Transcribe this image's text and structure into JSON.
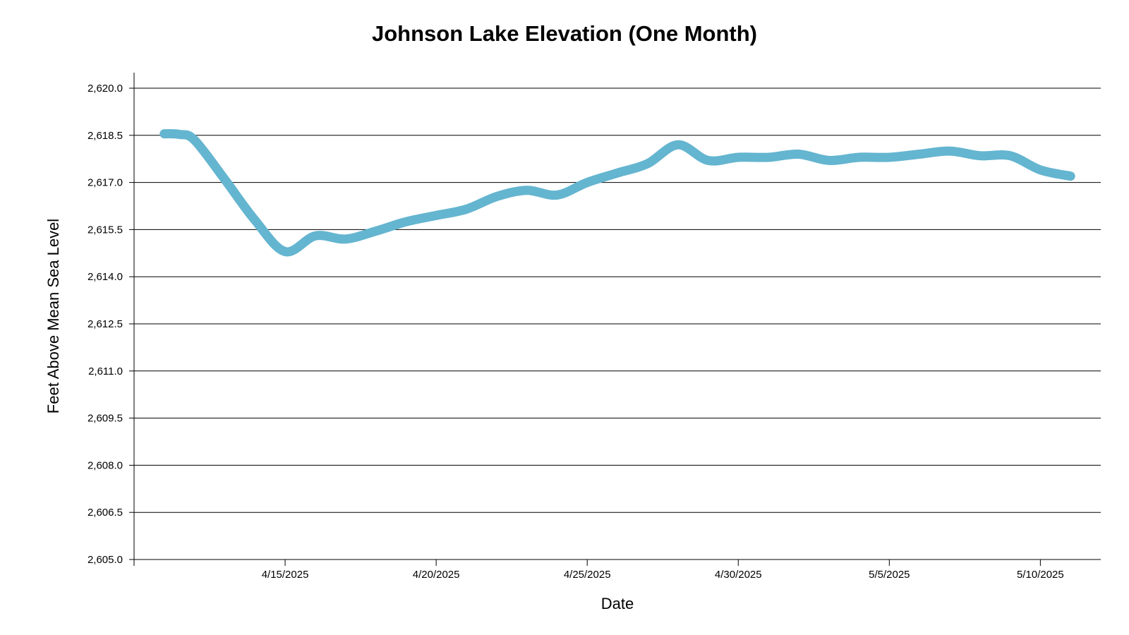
{
  "chart_data": {
    "type": "line",
    "title": "Johnson Lake Elevation (One Month)",
    "xlabel": "Date",
    "ylabel": "Feet Above Mean Sea Level",
    "ylim": [
      2605.0,
      2620.0
    ],
    "yticks": [
      "2,605.0",
      "2,606.5",
      "2,608.0",
      "2,609.5",
      "2,611.0",
      "2,612.5",
      "2,614.0",
      "2,615.5",
      "2,617.0",
      "2,618.5",
      "2,620.0"
    ],
    "xlim": [
      "2025-04-10",
      "2025-05-12"
    ],
    "xticks": [
      {
        "date": "2025-04-15",
        "label": "4/15/2025"
      },
      {
        "date": "2025-04-20",
        "label": "4/20/2025"
      },
      {
        "date": "2025-04-25",
        "label": "4/25/2025"
      },
      {
        "date": "2025-04-30",
        "label": "4/30/2025"
      },
      {
        "date": "2025-05-05",
        "label": "5/5/2025"
      },
      {
        "date": "2025-05-10",
        "label": "5/10/2025"
      }
    ],
    "grid": "horizontal",
    "series": [
      {
        "color": "#64b5d0",
        "points": [
          {
            "x": "2025-04-11",
            "y": 2618.55
          },
          {
            "x": "2025-04-11T12:00",
            "y": 2618.53
          },
          {
            "x": "2025-04-12",
            "y": 2618.35
          },
          {
            "x": "2025-04-13",
            "y": 2617.1
          },
          {
            "x": "2025-04-14",
            "y": 2615.8
          },
          {
            "x": "2025-04-15",
            "y": 2614.8
          },
          {
            "x": "2025-04-16",
            "y": 2615.3
          },
          {
            "x": "2025-04-17",
            "y": 2615.2
          },
          {
            "x": "2025-04-18",
            "y": 2615.45
          },
          {
            "x": "2025-04-19",
            "y": 2615.75
          },
          {
            "x": "2025-04-20",
            "y": 2615.95
          },
          {
            "x": "2025-04-21",
            "y": 2616.15
          },
          {
            "x": "2025-04-22",
            "y": 2616.55
          },
          {
            "x": "2025-04-23",
            "y": 2616.75
          },
          {
            "x": "2025-04-24",
            "y": 2616.6
          },
          {
            "x": "2025-04-25",
            "y": 2617.0
          },
          {
            "x": "2025-04-26",
            "y": 2617.3
          },
          {
            "x": "2025-04-27",
            "y": 2617.6
          },
          {
            "x": "2025-04-28",
            "y": 2618.2
          },
          {
            "x": "2025-04-29",
            "y": 2617.7
          },
          {
            "x": "2025-04-30",
            "y": 2617.8
          },
          {
            "x": "2025-05-01",
            "y": 2617.8
          },
          {
            "x": "2025-05-02",
            "y": 2617.9
          },
          {
            "x": "2025-05-03",
            "y": 2617.7
          },
          {
            "x": "2025-05-04",
            "y": 2617.8
          },
          {
            "x": "2025-05-05",
            "y": 2617.8
          },
          {
            "x": "2025-05-06",
            "y": 2617.9
          },
          {
            "x": "2025-05-07",
            "y": 2618.0
          },
          {
            "x": "2025-05-08",
            "y": 2617.85
          },
          {
            "x": "2025-05-09",
            "y": 2617.85
          },
          {
            "x": "2025-05-10",
            "y": 2617.4
          },
          {
            "x": "2025-05-11",
            "y": 2617.2
          }
        ]
      }
    ]
  }
}
